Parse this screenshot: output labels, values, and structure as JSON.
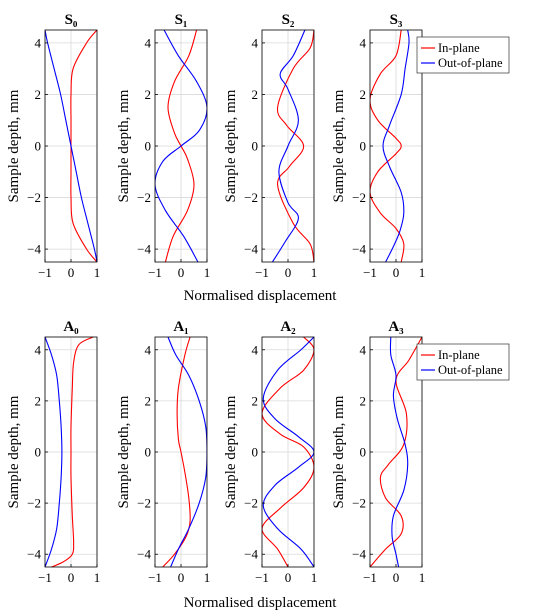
{
  "figure": {
    "xlabel": "Normalised displacement",
    "ylabel": "Sample depth, mm",
    "colors": {
      "in_plane": "#ff0000",
      "out_of_plane": "#0000ff",
      "grid": "#d9d9d9",
      "axis": "#000000"
    }
  },
  "legend": {
    "placement": "top-right of S3 and A3 panels",
    "entries": [
      {
        "name": "In-plane",
        "color": "#ff0000"
      },
      {
        "name": "Out-of-plane",
        "color": "#0000ff"
      }
    ]
  },
  "chart_data": [
    {
      "title": "S₀",
      "type": "line",
      "row": "S",
      "col": 0,
      "xlim": [
        -1,
        1
      ],
      "ylim": [
        -4.5,
        4.5
      ],
      "xticks": [
        -1,
        0,
        1
      ],
      "yticks": [
        -4,
        -2,
        0,
        2,
        4
      ],
      "grid": true,
      "legend": false,
      "series": [
        {
          "name": "In-plane",
          "color": "#ff0000",
          "x": [
            1.0,
            0.6,
            0.08,
            0.0,
            0.0,
            0.0,
            0.0,
            0.0,
            0.08,
            0.6,
            1.0
          ],
          "y": [
            4.5,
            4.0,
            3.0,
            2.0,
            1.0,
            0.0,
            -1.0,
            -2.0,
            -3.0,
            -4.0,
            -4.5
          ]
        },
        {
          "name": "Out-of-plane",
          "color": "#0000ff",
          "x": [
            -1.0,
            -0.9,
            -0.65,
            -0.4,
            -0.2,
            0.0,
            0.2,
            0.4,
            0.65,
            0.9,
            1.0
          ],
          "y": [
            4.5,
            4.0,
            3.0,
            2.0,
            1.0,
            0.0,
            -1.0,
            -2.0,
            -3.0,
            -4.0,
            -4.5
          ]
        }
      ]
    },
    {
      "title": "S₁",
      "type": "line",
      "row": "S",
      "col": 1,
      "xlim": [
        -1,
        1
      ],
      "ylim": [
        -4.5,
        4.5
      ],
      "xticks": [
        -1,
        0,
        1
      ],
      "yticks": [
        -4,
        -2,
        0,
        2,
        4
      ],
      "grid": true,
      "legend": false,
      "series": [
        {
          "name": "In-plane",
          "color": "#ff0000",
          "x": [
            0.6,
            0.3,
            -0.25,
            -0.5,
            -0.25,
            0.0,
            0.25,
            0.5,
            0.25,
            -0.3,
            -0.6
          ],
          "y": [
            4.5,
            3.5,
            2.5,
            1.5,
            0.5,
            0.0,
            -0.5,
            -1.5,
            -2.5,
            -3.5,
            -4.5
          ]
        },
        {
          "name": "Out-of-plane",
          "color": "#0000ff",
          "x": [
            -0.65,
            -0.1,
            0.6,
            1.0,
            0.7,
            0.0,
            -0.7,
            -1.0,
            -0.6,
            0.1,
            0.65
          ],
          "y": [
            4.5,
            3.5,
            2.5,
            1.5,
            0.6,
            0.0,
            -0.6,
            -1.5,
            -2.5,
            -3.5,
            -4.5
          ]
        }
      ]
    },
    {
      "title": "S₂",
      "type": "line",
      "row": "S",
      "col": 2,
      "xlim": [
        -1,
        1
      ],
      "ylim": [
        -4.5,
        4.5
      ],
      "xticks": [
        -1,
        0,
        1
      ],
      "yticks": [
        -4,
        -2,
        0,
        2,
        4
      ],
      "grid": true,
      "legend": false,
      "series": [
        {
          "name": "In-plane",
          "color": "#ff0000",
          "x": [
            1.0,
            0.85,
            0.2,
            -0.4,
            -0.05,
            0.6,
            0.05,
            -0.4,
            0.2,
            0.85,
            1.0
          ],
          "y": [
            4.5,
            3.8,
            3.0,
            1.5,
            0.8,
            0.0,
            -0.8,
            -1.5,
            -3.0,
            -3.8,
            -4.5
          ]
        },
        {
          "name": "Out-of-plane",
          "color": "#0000ff",
          "x": [
            0.65,
            0.2,
            -0.3,
            0.0,
            0.4,
            0.0,
            -0.35,
            0.0,
            0.4,
            -0.1,
            -0.6
          ],
          "y": [
            4.5,
            3.5,
            2.8,
            2.2,
            1.0,
            0.0,
            -1.0,
            -2.2,
            -2.8,
            -3.7,
            -4.5
          ]
        }
      ]
    },
    {
      "title": "S₃",
      "type": "line",
      "row": "S",
      "col": 3,
      "xlim": [
        -1,
        1
      ],
      "ylim": [
        -4.5,
        4.5
      ],
      "xticks": [
        -1,
        0,
        1
      ],
      "yticks": [
        -4,
        -2,
        0,
        2,
        4
      ],
      "grid": true,
      "legend": true,
      "series": [
        {
          "name": "In-plane",
          "color": "#ff0000",
          "x": [
            0.2,
            0.0,
            -0.6,
            -1.0,
            -0.7,
            0.0,
            0.2,
            0.0,
            -0.7,
            -1.0,
            -0.6,
            0.0,
            0.3,
            0.2
          ],
          "y": [
            4.5,
            3.5,
            2.8,
            1.8,
            1.0,
            0.3,
            0.0,
            -0.3,
            -1.0,
            -1.8,
            -2.6,
            -3.2,
            -3.8,
            -4.5
          ]
        },
        {
          "name": "Out-of-plane",
          "color": "#0000ff",
          "x": [
            0.45,
            0.5,
            0.35,
            0.2,
            -0.25,
            -0.5,
            -0.25,
            0.2,
            0.3,
            0.15,
            -0.1,
            -0.4
          ],
          "y": [
            4.5,
            4.0,
            3.0,
            2.0,
            0.8,
            0.0,
            -0.8,
            -1.8,
            -2.6,
            -3.3,
            -3.9,
            -4.5
          ]
        }
      ]
    },
    {
      "title": "A₀",
      "type": "line",
      "row": "A",
      "col": 0,
      "xlim": [
        -1,
        1
      ],
      "ylim": [
        -4.5,
        4.5
      ],
      "xticks": [
        -1,
        0,
        1
      ],
      "yticks": [
        -4,
        -2,
        0,
        2,
        4
      ],
      "grid": true,
      "legend": false,
      "series": [
        {
          "name": "In-plane",
          "color": "#ff0000",
          "x": [
            0.85,
            0.3,
            0.1,
            0.05,
            0.0,
            0.0,
            0.0,
            0.05,
            0.1,
            0.05,
            -0.3,
            -0.75
          ],
          "y": [
            4.5,
            4.2,
            3.5,
            2.5,
            1.0,
            0.0,
            -1.0,
            -2.5,
            -3.5,
            -4.0,
            -4.3,
            -4.5
          ]
        },
        {
          "name": "Out-of-plane",
          "color": "#0000ff",
          "x": [
            -1.0,
            -0.75,
            -0.55,
            -0.45,
            -0.38,
            -0.35,
            -0.38,
            -0.45,
            -0.55,
            -0.75,
            -1.0
          ],
          "y": [
            4.5,
            3.8,
            3.0,
            2.0,
            1.0,
            0.0,
            -1.0,
            -2.0,
            -3.0,
            -3.8,
            -4.5
          ]
        }
      ]
    },
    {
      "title": "A₁",
      "type": "line",
      "row": "A",
      "col": 1,
      "xlim": [
        -1,
        1
      ],
      "ylim": [
        -4.5,
        4.5
      ],
      "xticks": [
        -1,
        0,
        1
      ],
      "yticks": [
        -4,
        -2,
        0,
        2,
        4
      ],
      "grid": true,
      "legend": false,
      "series": [
        {
          "name": "In-plane",
          "color": "#ff0000",
          "x": [
            0.35,
            0.15,
            -0.1,
            -0.15,
            -0.1,
            0.0,
            0.15,
            0.3,
            0.35,
            0.2,
            -0.25,
            -0.7
          ],
          "y": [
            4.5,
            3.8,
            2.5,
            1.5,
            0.5,
            0.0,
            -0.8,
            -1.8,
            -2.7,
            -3.3,
            -4.0,
            -4.5
          ]
        },
        {
          "name": "Out-of-plane",
          "color": "#0000ff",
          "x": [
            -0.5,
            -0.2,
            0.3,
            0.7,
            0.95,
            1.0,
            0.95,
            0.7,
            0.3,
            -0.1,
            -0.4
          ],
          "y": [
            4.5,
            3.8,
            3.0,
            2.0,
            1.0,
            0.0,
            -1.0,
            -2.0,
            -3.0,
            -3.8,
            -4.5
          ]
        }
      ]
    },
    {
      "title": "A₂",
      "type": "line",
      "row": "A",
      "col": 2,
      "xlim": [
        -1,
        1
      ],
      "ylim": [
        -4.5,
        4.5
      ],
      "xticks": [
        -1,
        0,
        1
      ],
      "yticks": [
        -4,
        -2,
        0,
        2,
        4
      ],
      "grid": true,
      "legend": false,
      "series": [
        {
          "name": "In-plane",
          "color": "#ff0000",
          "x": [
            0.6,
            1.0,
            0.6,
            -0.3,
            -1.0,
            -0.3,
            0.6,
            1.0,
            0.6,
            -0.3,
            -1.0,
            -0.4,
            0.0
          ],
          "y": [
            4.5,
            4.0,
            3.2,
            2.5,
            1.5,
            0.7,
            0.2,
            -0.6,
            -1.4,
            -2.2,
            -3.0,
            -3.8,
            -4.5
          ]
        },
        {
          "name": "Out-of-plane",
          "color": "#0000ff",
          "x": [
            1.0,
            0.5,
            -0.4,
            -0.95,
            -0.5,
            0.4,
            1.0,
            0.4,
            -0.5,
            -0.95,
            -0.4,
            0.5,
            1.0
          ],
          "y": [
            4.5,
            4.0,
            3.2,
            2.1,
            1.3,
            0.6,
            0.0,
            -0.6,
            -1.3,
            -2.1,
            -3.0,
            -3.8,
            -4.5
          ]
        }
      ]
    },
    {
      "title": "A₃",
      "type": "line",
      "row": "A",
      "col": 3,
      "xlim": [
        -1,
        1
      ],
      "ylim": [
        -4.5,
        4.5
      ],
      "xticks": [
        -1,
        0,
        1
      ],
      "yticks": [
        -4,
        -2,
        0,
        2,
        4
      ],
      "grid": true,
      "legend": true,
      "series": [
        {
          "name": "In-plane",
          "color": "#ff0000",
          "x": [
            1.0,
            0.5,
            0.0,
            0.4,
            0.3,
            -0.3,
            -0.6,
            -0.4,
            0.2,
            0.2,
            -0.4,
            -1.0
          ],
          "y": [
            4.5,
            3.6,
            2.8,
            1.5,
            0.3,
            -0.5,
            -1.0,
            -1.8,
            -2.5,
            -3.2,
            -3.8,
            -4.5
          ]
        },
        {
          "name": "Out-of-plane",
          "color": "#0000ff",
          "x": [
            -0.2,
            -0.2,
            0.0,
            -0.1,
            0.05,
            0.35,
            0.45,
            0.3,
            -0.1,
            -0.15,
            0.0,
            0.1
          ],
          "y": [
            4.5,
            3.8,
            3.0,
            2.2,
            1.3,
            0.3,
            -0.5,
            -1.5,
            -2.5,
            -3.3,
            -4.0,
            -4.5
          ]
        }
      ]
    }
  ]
}
